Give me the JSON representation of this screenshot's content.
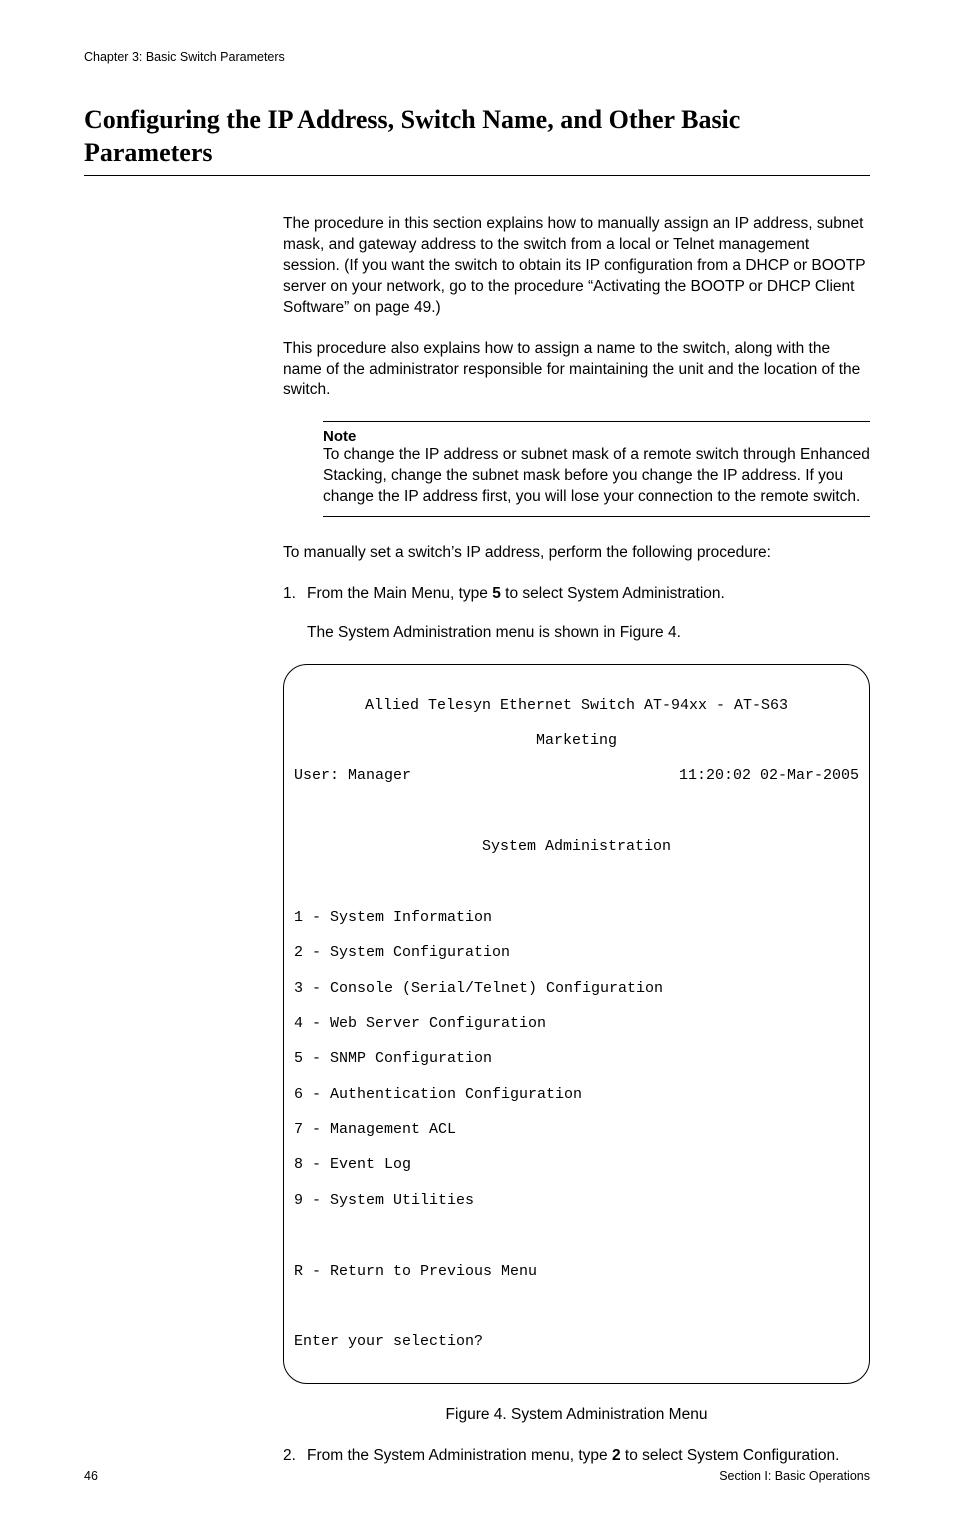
{
  "header": {
    "chapter": "Chapter 3: Basic Switch Parameters"
  },
  "heading": "Configuring the IP Address, Switch Name, and Other Basic Parameters",
  "para1": "The procedure in this section explains how to manually assign an IP address, subnet mask, and gateway address to the switch from a local or Telnet management session. (If you want the switch to obtain its IP configuration from a DHCP or BOOTP server on your network, go to the procedure “Activating the BOOTP or DHCP Client Software” on page 49.)",
  "para2": "This procedure also explains how to assign a name to the switch, along with the name of the administrator responsible for maintaining the unit and the location of the switch.",
  "note": {
    "label": "Note",
    "text": "To change the IP address or subnet mask of a remote switch through Enhanced Stacking, change the subnet mask before you change the IP address. If you change the IP address first, you will lose your connection to the remote switch."
  },
  "para3": "To manually set a switch’s IP address, perform the following procedure:",
  "steps": {
    "s1_num": "1.",
    "s1_pre": "From the Main Menu, type ",
    "s1_bold": "5",
    "s1_post": " to select System Administration.",
    "s1_sub": "The System Administration menu is shown in Figure 4.",
    "s2_num": "2.",
    "s2_pre": "From the System Administration menu, type ",
    "s2_bold": "2",
    "s2_post": " to select System Configuration."
  },
  "terminal": {
    "title": "Allied Telesyn Ethernet Switch AT-94xx - AT-S63",
    "subtitle": "Marketing",
    "user": "User: Manager",
    "timestamp": "11:20:02 02-Mar-2005",
    "menutitle": "System Administration",
    "items": [
      "1 - System Information",
      "2 - System Configuration",
      "3 - Console (Serial/Telnet) Configuration",
      "4 - Web Server Configuration",
      "5 - SNMP Configuration",
      "6 - Authentication Configuration",
      "7 - Management ACL",
      "8 - Event Log",
      "9 - System Utilities"
    ],
    "return": "R - Return to Previous Menu",
    "prompt": "Enter your selection?"
  },
  "figure_caption": "Figure 4. System Administration Menu",
  "footer": {
    "page_num": "46",
    "section": "Section I: Basic Operations"
  },
  "colors": {
    "text": "#000000",
    "background": "#ffffff",
    "rule": "#000000"
  },
  "fonts": {
    "heading_family": "Times New Roman",
    "heading_size_pt": 20,
    "body_family": "Arial",
    "body_size_pt": 12,
    "mono_family": "Courier New",
    "mono_size_pt": 11
  }
}
